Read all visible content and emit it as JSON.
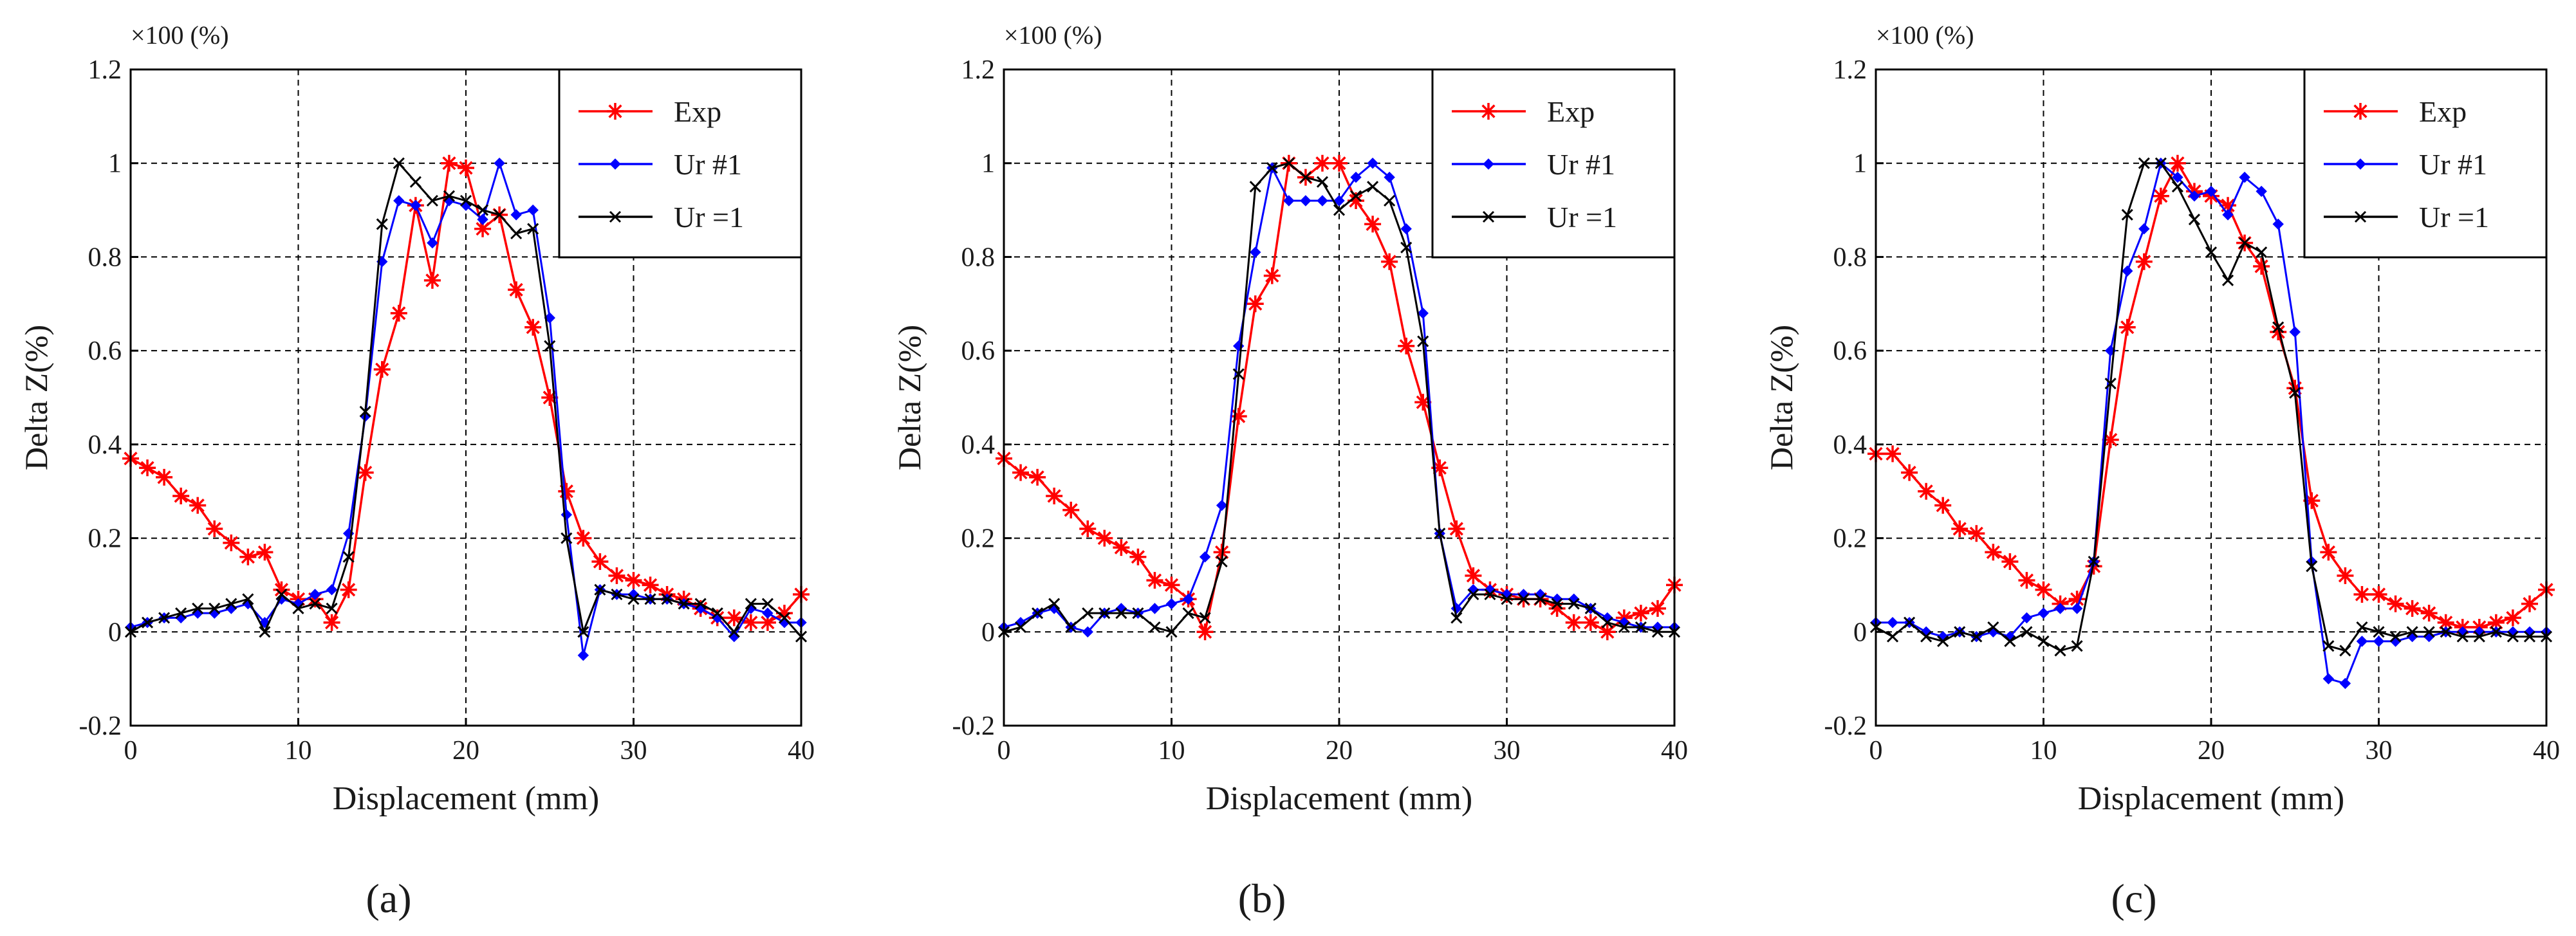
{
  "colors": {
    "exp": "#ff0000",
    "ur_hash1": "#0000ff",
    "ur_eq1": "#000000",
    "grid": "#000000",
    "background": "#ffffff"
  },
  "chart_data": [
    {
      "type": "line",
      "panel_label": "(a)",
      "scale_note": "×100 (%)",
      "xlabel": "Displacement (mm)",
      "ylabel": "Delta Z(%)",
      "xlim": [
        0,
        40
      ],
      "ylim": [
        -0.2,
        1.2
      ],
      "xticks": [
        0,
        10,
        20,
        30,
        40
      ],
      "yticks": [
        -0.2,
        0,
        0.2,
        0.4,
        0.6,
        0.8,
        1,
        1.2
      ],
      "grid": true,
      "legend_position": "top-right",
      "series": [
        {
          "name": "Exp",
          "marker": "star",
          "x": [
            0,
            1,
            2,
            3,
            4,
            5,
            6,
            7,
            8,
            9,
            10,
            11,
            12,
            13,
            14,
            15,
            16,
            17,
            18,
            19,
            20,
            21,
            22,
            23,
            24,
            25,
            26,
            27,
            28,
            29,
            30,
            31,
            32,
            33,
            34,
            35,
            36,
            37,
            38,
            39,
            40
          ],
          "y": [
            0.37,
            0.35,
            0.33,
            0.29,
            0.27,
            0.22,
            0.19,
            0.16,
            0.17,
            0.09,
            0.07,
            0.07,
            0.02,
            0.09,
            0.34,
            0.56,
            0.68,
            0.91,
            0.75,
            1.0,
            0.99,
            0.86,
            0.89,
            0.73,
            0.65,
            0.5,
            0.3,
            0.2,
            0.15,
            0.12,
            0.11,
            0.1,
            0.08,
            0.07,
            0.05,
            0.03,
            0.03,
            0.02,
            0.02,
            0.04,
            0.08
          ]
        },
        {
          "name": "Ur #1",
          "marker": "diamond",
          "x": [
            0,
            1,
            2,
            3,
            4,
            5,
            6,
            7,
            8,
            9,
            10,
            11,
            12,
            13,
            14,
            15,
            16,
            17,
            18,
            19,
            20,
            21,
            22,
            23,
            24,
            25,
            26,
            27,
            28,
            29,
            30,
            31,
            32,
            33,
            34,
            35,
            36,
            37,
            38,
            39,
            40
          ],
          "y": [
            0.01,
            0.02,
            0.03,
            0.03,
            0.04,
            0.04,
            0.05,
            0.06,
            0.02,
            0.07,
            0.06,
            0.08,
            0.09,
            0.21,
            0.46,
            0.79,
            0.92,
            0.91,
            0.83,
            0.92,
            0.91,
            0.88,
            1.0,
            0.89,
            0.9,
            0.67,
            0.25,
            -0.05,
            0.09,
            0.08,
            0.08,
            0.07,
            0.07,
            0.06,
            0.05,
            0.03,
            -0.01,
            0.05,
            0.04,
            0.02,
            0.02
          ]
        },
        {
          "name": "Ur =1",
          "marker": "x",
          "x": [
            0,
            1,
            2,
            3,
            4,
            5,
            6,
            7,
            8,
            9,
            10,
            11,
            12,
            13,
            14,
            15,
            16,
            17,
            18,
            19,
            20,
            21,
            22,
            23,
            24,
            25,
            26,
            27,
            28,
            29,
            30,
            31,
            32,
            33,
            34,
            35,
            36,
            37,
            38,
            39,
            40
          ],
          "y": [
            0.0,
            0.02,
            0.03,
            0.04,
            0.05,
            0.05,
            0.06,
            0.07,
            0.0,
            0.08,
            0.05,
            0.06,
            0.05,
            0.16,
            0.47,
            0.87,
            1.0,
            0.96,
            0.92,
            0.93,
            0.92,
            0.9,
            0.89,
            0.85,
            0.86,
            0.61,
            0.2,
            0.0,
            0.09,
            0.08,
            0.07,
            0.07,
            0.07,
            0.06,
            0.06,
            0.04,
            0.0,
            0.06,
            0.06,
            0.03,
            -0.01
          ]
        }
      ]
    },
    {
      "type": "line",
      "panel_label": "(b)",
      "scale_note": "×100 (%)",
      "xlabel": "Displacement (mm)",
      "ylabel": "Delta Z(%)",
      "xlim": [
        0,
        40
      ],
      "ylim": [
        -0.2,
        1.2
      ],
      "xticks": [
        0,
        10,
        20,
        30,
        40
      ],
      "yticks": [
        -0.2,
        0,
        0.2,
        0.4,
        0.6,
        0.8,
        1,
        1.2
      ],
      "grid": true,
      "legend_position": "top-right",
      "series": [
        {
          "name": "Exp",
          "marker": "star",
          "x": [
            0,
            1,
            2,
            3,
            4,
            5,
            6,
            7,
            8,
            9,
            10,
            11,
            12,
            13,
            14,
            15,
            16,
            17,
            18,
            19,
            20,
            21,
            22,
            23,
            24,
            25,
            26,
            27,
            28,
            29,
            30,
            31,
            32,
            33,
            34,
            35,
            36,
            37,
            38,
            39,
            40
          ],
          "y": [
            0.37,
            0.34,
            0.33,
            0.29,
            0.26,
            0.22,
            0.2,
            0.18,
            0.16,
            0.11,
            0.1,
            0.07,
            0.0,
            0.17,
            0.46,
            0.7,
            0.76,
            1.0,
            0.97,
            1.0,
            1.0,
            0.92,
            0.87,
            0.79,
            0.61,
            0.49,
            0.35,
            0.22,
            0.12,
            0.09,
            0.08,
            0.07,
            0.07,
            0.05,
            0.02,
            0.02,
            0.0,
            0.03,
            0.04,
            0.05,
            0.1
          ]
        },
        {
          "name": "Ur #1",
          "marker": "diamond",
          "x": [
            0,
            1,
            2,
            3,
            4,
            5,
            6,
            7,
            8,
            9,
            10,
            11,
            12,
            13,
            14,
            15,
            16,
            17,
            18,
            19,
            20,
            21,
            22,
            23,
            24,
            25,
            26,
            27,
            28,
            29,
            30,
            31,
            32,
            33,
            34,
            35,
            36,
            37,
            38,
            39,
            40
          ],
          "y": [
            0.01,
            0.02,
            0.04,
            0.05,
            0.01,
            0.0,
            0.04,
            0.05,
            0.04,
            0.05,
            0.06,
            0.07,
            0.16,
            0.27,
            0.61,
            0.81,
            0.99,
            0.92,
            0.92,
            0.92,
            0.92,
            0.97,
            1.0,
            0.97,
            0.86,
            0.68,
            0.21,
            0.05,
            0.09,
            0.09,
            0.08,
            0.08,
            0.08,
            0.07,
            0.07,
            0.05,
            0.03,
            0.02,
            0.01,
            0.01,
            0.01
          ]
        },
        {
          "name": "Ur =1",
          "marker": "x",
          "x": [
            0,
            1,
            2,
            3,
            4,
            5,
            6,
            7,
            8,
            9,
            10,
            11,
            12,
            13,
            14,
            15,
            16,
            17,
            18,
            19,
            20,
            21,
            22,
            23,
            24,
            25,
            26,
            27,
            28,
            29,
            30,
            31,
            32,
            33,
            34,
            35,
            36,
            37,
            38,
            39,
            40
          ],
          "y": [
            0.0,
            0.01,
            0.04,
            0.06,
            0.01,
            0.04,
            0.04,
            0.04,
            0.04,
            0.01,
            0.0,
            0.04,
            0.03,
            0.15,
            0.55,
            0.95,
            0.99,
            1.0,
            0.97,
            0.96,
            0.9,
            0.93,
            0.95,
            0.92,
            0.82,
            0.62,
            0.21,
            0.03,
            0.08,
            0.08,
            0.07,
            0.07,
            0.07,
            0.06,
            0.06,
            0.05,
            0.02,
            0.01,
            0.01,
            0.0,
            0.0
          ]
        }
      ]
    },
    {
      "type": "line",
      "panel_label": "(c)",
      "scale_note": "×100 (%)",
      "xlabel": "Displacement (mm)",
      "ylabel": "Delta Z(%)",
      "xlim": [
        0,
        40
      ],
      "ylim": [
        -0.2,
        1.2
      ],
      "xticks": [
        0,
        10,
        20,
        30,
        40
      ],
      "yticks": [
        -0.2,
        0,
        0.2,
        0.4,
        0.6,
        0.8,
        1,
        1.2
      ],
      "grid": true,
      "legend_position": "top-right",
      "series": [
        {
          "name": "Exp",
          "marker": "star",
          "x": [
            0,
            1,
            2,
            3,
            4,
            5,
            6,
            7,
            8,
            9,
            10,
            11,
            12,
            13,
            14,
            15,
            16,
            17,
            18,
            19,
            20,
            21,
            22,
            23,
            24,
            25,
            26,
            27,
            28,
            29,
            30,
            31,
            32,
            33,
            34,
            35,
            36,
            37,
            38,
            39,
            40
          ],
          "y": [
            0.38,
            0.38,
            0.34,
            0.3,
            0.27,
            0.22,
            0.21,
            0.17,
            0.15,
            0.11,
            0.09,
            0.06,
            0.07,
            0.14,
            0.41,
            0.65,
            0.79,
            0.93,
            1.0,
            0.94,
            0.93,
            0.91,
            0.83,
            0.78,
            0.64,
            0.52,
            0.28,
            0.17,
            0.12,
            0.08,
            0.08,
            0.06,
            0.05,
            0.04,
            0.02,
            0.01,
            0.01,
            0.02,
            0.03,
            0.06,
            0.09
          ]
        },
        {
          "name": "Ur #1",
          "marker": "diamond",
          "x": [
            0,
            1,
            2,
            3,
            4,
            5,
            6,
            7,
            8,
            9,
            10,
            11,
            12,
            13,
            14,
            15,
            16,
            17,
            18,
            19,
            20,
            21,
            22,
            23,
            24,
            25,
            26,
            27,
            28,
            29,
            30,
            31,
            32,
            33,
            34,
            35,
            36,
            37,
            38,
            39,
            40
          ],
          "y": [
            0.02,
            0.02,
            0.02,
            0.0,
            -0.01,
            0.0,
            -0.01,
            0.0,
            -0.01,
            0.03,
            0.04,
            0.05,
            0.05,
            0.15,
            0.6,
            0.77,
            0.86,
            1.0,
            0.97,
            0.93,
            0.94,
            0.89,
            0.97,
            0.94,
            0.87,
            0.64,
            0.15,
            -0.1,
            -0.11,
            -0.02,
            -0.02,
            -0.02,
            -0.01,
            -0.01,
            0.0,
            0.0,
            0.0,
            0.0,
            0.0,
            0.0,
            0.0
          ]
        },
        {
          "name": "Ur =1",
          "marker": "x",
          "x": [
            0,
            1,
            2,
            3,
            4,
            5,
            6,
            7,
            8,
            9,
            10,
            11,
            12,
            13,
            14,
            15,
            16,
            17,
            18,
            19,
            20,
            21,
            22,
            23,
            24,
            25,
            26,
            27,
            28,
            29,
            30,
            31,
            32,
            33,
            34,
            35,
            36,
            37,
            38,
            39,
            40
          ],
          "y": [
            0.01,
            -0.01,
            0.02,
            -0.01,
            -0.02,
            0.0,
            -0.01,
            0.01,
            -0.02,
            0.0,
            -0.02,
            -0.04,
            -0.03,
            0.15,
            0.53,
            0.89,
            1.0,
            1.0,
            0.95,
            0.88,
            0.81,
            0.75,
            0.83,
            0.81,
            0.65,
            0.51,
            0.14,
            -0.03,
            -0.04,
            0.01,
            0.0,
            -0.01,
            0.0,
            0.0,
            0.0,
            -0.01,
            -0.01,
            0.0,
            -0.01,
            -0.01,
            -0.01
          ]
        }
      ]
    }
  ]
}
